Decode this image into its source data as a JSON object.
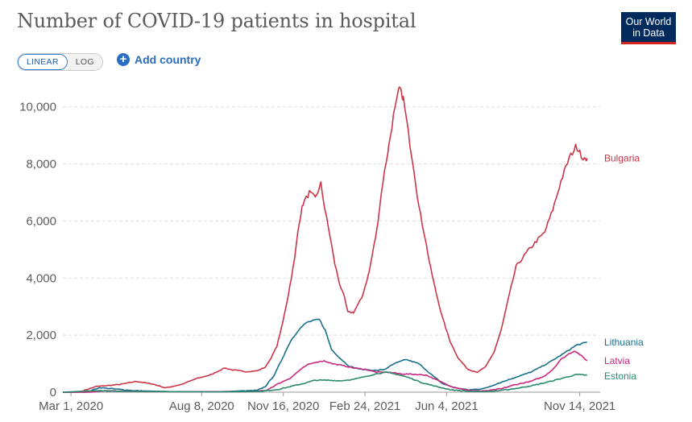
{
  "header": {
    "title": "Number of COVID-19 patients in hospital",
    "logo_line1": "Our World",
    "logo_line2": "in Data"
  },
  "controls": {
    "linear_label": "LINEAR",
    "log_label": "LOG",
    "active_scale": "linear",
    "add_country_label": "Add country"
  },
  "colors": {
    "Bulgaria": "#cc3548",
    "Lithuania": "#18708c",
    "Latvia": "#c8287f",
    "Estonia": "#2a8a6e",
    "grid": "#dddddd",
    "axis": "#999999"
  },
  "chart_data": {
    "type": "line",
    "title": "Number of COVID-19 patients in hospital",
    "xlabel": "",
    "ylabel": "",
    "xlim": [
      "2020-02-20",
      "2021-12-09"
    ],
    "ylim": [
      0,
      10500
    ],
    "y_ticks": [
      0,
      2000,
      4000,
      6000,
      8000,
      10000
    ],
    "y_tick_labels": [
      "0",
      "2,000",
      "4,000",
      "6,000",
      "8,000",
      "10,000"
    ],
    "x_ticks": [
      "2020-03-01",
      "2020-08-08",
      "2020-11-16",
      "2021-02-24",
      "2021-06-04",
      "2021-11-14"
    ],
    "x_tick_labels": [
      "Mar 1, 2020",
      "Aug 8, 2020",
      "Nov 16, 2020",
      "Feb 24, 2021",
      "Jun 4, 2021",
      "Nov 14, 2021"
    ],
    "grid": "horizontal dashed",
    "legend": "inline labels at line ends",
    "series": [
      {
        "name": "Bulgaria",
        "points": [
          [
            "2020-02-20",
            0
          ],
          [
            "2020-03-10",
            0
          ],
          [
            "2020-04-01",
            200
          ],
          [
            "2020-04-30",
            270
          ],
          [
            "2020-05-20",
            380
          ],
          [
            "2020-06-10",
            280
          ],
          [
            "2020-06-25",
            150
          ],
          [
            "2020-07-15",
            280
          ],
          [
            "2020-08-01",
            470
          ],
          [
            "2020-08-20",
            620
          ],
          [
            "2020-09-05",
            850
          ],
          [
            "2020-09-15",
            780
          ],
          [
            "2020-10-01",
            720
          ],
          [
            "2020-10-15",
            750
          ],
          [
            "2020-10-25",
            880
          ],
          [
            "2020-11-01",
            1200
          ],
          [
            "2020-11-08",
            1600
          ],
          [
            "2020-11-15",
            2400
          ],
          [
            "2020-11-22",
            3400
          ],
          [
            "2020-11-30",
            4700
          ],
          [
            "2020-12-05",
            5900
          ],
          [
            "2020-12-10",
            6600
          ],
          [
            "2020-12-18",
            7000
          ],
          [
            "2020-12-25",
            6800
          ],
          [
            "2021-01-01",
            7300
          ],
          [
            "2021-01-06",
            6400
          ],
          [
            "2021-01-12",
            5500
          ],
          [
            "2021-01-18",
            4500
          ],
          [
            "2021-01-24",
            3800
          ],
          [
            "2021-01-30",
            3300
          ],
          [
            "2021-02-03",
            2800
          ],
          [
            "2021-02-10",
            2800
          ],
          [
            "2021-02-20",
            3300
          ],
          [
            "2021-03-01",
            4200
          ],
          [
            "2021-03-10",
            5600
          ],
          [
            "2021-03-18",
            7400
          ],
          [
            "2021-03-25",
            8600
          ],
          [
            "2021-03-31",
            9700
          ],
          [
            "2021-04-04",
            10200
          ],
          [
            "2021-04-07",
            10650
          ],
          [
            "2021-04-12",
            10300
          ],
          [
            "2021-04-18",
            9100
          ],
          [
            "2021-04-25",
            7800
          ],
          [
            "2021-05-01",
            6500
          ],
          [
            "2021-05-08",
            5500
          ],
          [
            "2021-05-15",
            4400
          ],
          [
            "2021-05-22",
            3500
          ],
          [
            "2021-05-30",
            2600
          ],
          [
            "2021-06-08",
            1800
          ],
          [
            "2021-06-18",
            1200
          ],
          [
            "2021-06-30",
            800
          ],
          [
            "2021-07-12",
            700
          ],
          [
            "2021-07-22",
            900
          ],
          [
            "2021-08-01",
            1400
          ],
          [
            "2021-08-10",
            2200
          ],
          [
            "2021-08-18",
            3200
          ],
          [
            "2021-08-28",
            4400
          ],
          [
            "2021-09-10",
            4900
          ],
          [
            "2021-09-22",
            5300
          ],
          [
            "2021-10-02",
            5600
          ],
          [
            "2021-10-12",
            6400
          ],
          [
            "2021-10-22",
            7400
          ],
          [
            "2021-11-01",
            8200
          ],
          [
            "2021-11-09",
            8600
          ],
          [
            "2021-11-14",
            8500
          ],
          [
            "2021-11-18",
            8100
          ],
          [
            "2021-11-23",
            8200
          ]
        ]
      },
      {
        "name": "Lithuania",
        "points": [
          [
            "2020-02-20",
            0
          ],
          [
            "2020-03-20",
            0
          ],
          [
            "2020-04-05",
            160
          ],
          [
            "2020-04-25",
            110
          ],
          [
            "2020-05-20",
            50
          ],
          [
            "2020-07-01",
            20
          ],
          [
            "2020-09-01",
            20
          ],
          [
            "2020-10-15",
            60
          ],
          [
            "2020-10-25",
            200
          ],
          [
            "2020-11-05",
            600
          ],
          [
            "2020-11-15",
            1200
          ],
          [
            "2020-11-25",
            1800
          ],
          [
            "2020-12-05",
            2200
          ],
          [
            "2020-12-15",
            2450
          ],
          [
            "2020-12-22",
            2500
          ],
          [
            "2020-12-30",
            2550
          ],
          [
            "2021-01-06",
            2200
          ],
          [
            "2021-01-14",
            1500
          ],
          [
            "2021-01-24",
            1200
          ],
          [
            "2021-02-05",
            900
          ],
          [
            "2021-02-20",
            800
          ],
          [
            "2021-03-10",
            760
          ],
          [
            "2021-03-20",
            800
          ],
          [
            "2021-04-01",
            1000
          ],
          [
            "2021-04-15",
            1150
          ],
          [
            "2021-05-01",
            1000
          ],
          [
            "2021-05-15",
            650
          ],
          [
            "2021-05-30",
            300
          ],
          [
            "2021-06-15",
            150
          ],
          [
            "2021-07-01",
            80
          ],
          [
            "2021-07-20",
            130
          ],
          [
            "2021-08-05",
            300
          ],
          [
            "2021-08-25",
            500
          ],
          [
            "2021-09-15",
            700
          ],
          [
            "2021-10-05",
            1000
          ],
          [
            "2021-10-25",
            1350
          ],
          [
            "2021-11-10",
            1650
          ],
          [
            "2021-11-23",
            1750
          ]
        ]
      },
      {
        "name": "Latvia",
        "points": [
          [
            "2020-02-20",
            0
          ],
          [
            "2020-03-25",
            0
          ],
          [
            "2020-04-10",
            50
          ],
          [
            "2020-06-01",
            20
          ],
          [
            "2020-10-01",
            20
          ],
          [
            "2020-10-25",
            50
          ],
          [
            "2020-11-10",
            300
          ],
          [
            "2020-11-25",
            500
          ],
          [
            "2020-12-05",
            750
          ],
          [
            "2020-12-15",
            950
          ],
          [
            "2020-12-25",
            1050
          ],
          [
            "2021-01-05",
            1100
          ],
          [
            "2021-01-15",
            1000
          ],
          [
            "2021-01-25",
            950
          ],
          [
            "2021-02-10",
            850
          ],
          [
            "2021-02-25",
            800
          ],
          [
            "2021-03-10",
            700
          ],
          [
            "2021-03-25",
            700
          ],
          [
            "2021-04-10",
            640
          ],
          [
            "2021-04-25",
            630
          ],
          [
            "2021-05-10",
            600
          ],
          [
            "2021-05-25",
            400
          ],
          [
            "2021-06-10",
            200
          ],
          [
            "2021-07-01",
            60
          ],
          [
            "2021-07-20",
            40
          ],
          [
            "2021-08-10",
            120
          ],
          [
            "2021-08-25",
            250
          ],
          [
            "2021-09-15",
            380
          ],
          [
            "2021-10-01",
            550
          ],
          [
            "2021-10-12",
            800
          ],
          [
            "2021-10-22",
            1150
          ],
          [
            "2021-11-01",
            1350
          ],
          [
            "2021-11-08",
            1450
          ],
          [
            "2021-11-15",
            1300
          ],
          [
            "2021-11-23",
            1100
          ]
        ]
      },
      {
        "name": "Estonia",
        "points": [
          [
            "2020-02-20",
            0
          ],
          [
            "2020-04-01",
            60
          ],
          [
            "2020-05-01",
            30
          ],
          [
            "2020-09-01",
            10
          ],
          [
            "2020-10-20",
            30
          ],
          [
            "2020-11-10",
            100
          ],
          [
            "2020-11-25",
            200
          ],
          [
            "2020-12-10",
            300
          ],
          [
            "2020-12-25",
            420
          ],
          [
            "2021-01-10",
            420
          ],
          [
            "2021-01-25",
            400
          ],
          [
            "2021-02-10",
            450
          ],
          [
            "2021-02-25",
            550
          ],
          [
            "2021-03-10",
            650
          ],
          [
            "2021-03-22",
            700
          ],
          [
            "2021-04-05",
            620
          ],
          [
            "2021-04-20",
            500
          ],
          [
            "2021-05-05",
            330
          ],
          [
            "2021-05-25",
            180
          ],
          [
            "2021-06-10",
            80
          ],
          [
            "2021-07-01",
            30
          ],
          [
            "2021-07-20",
            20
          ],
          [
            "2021-08-10",
            60
          ],
          [
            "2021-09-01",
            150
          ],
          [
            "2021-09-20",
            250
          ],
          [
            "2021-10-05",
            350
          ],
          [
            "2021-10-25",
            500
          ],
          [
            "2021-11-10",
            620
          ],
          [
            "2021-11-23",
            600
          ]
        ]
      }
    ]
  }
}
